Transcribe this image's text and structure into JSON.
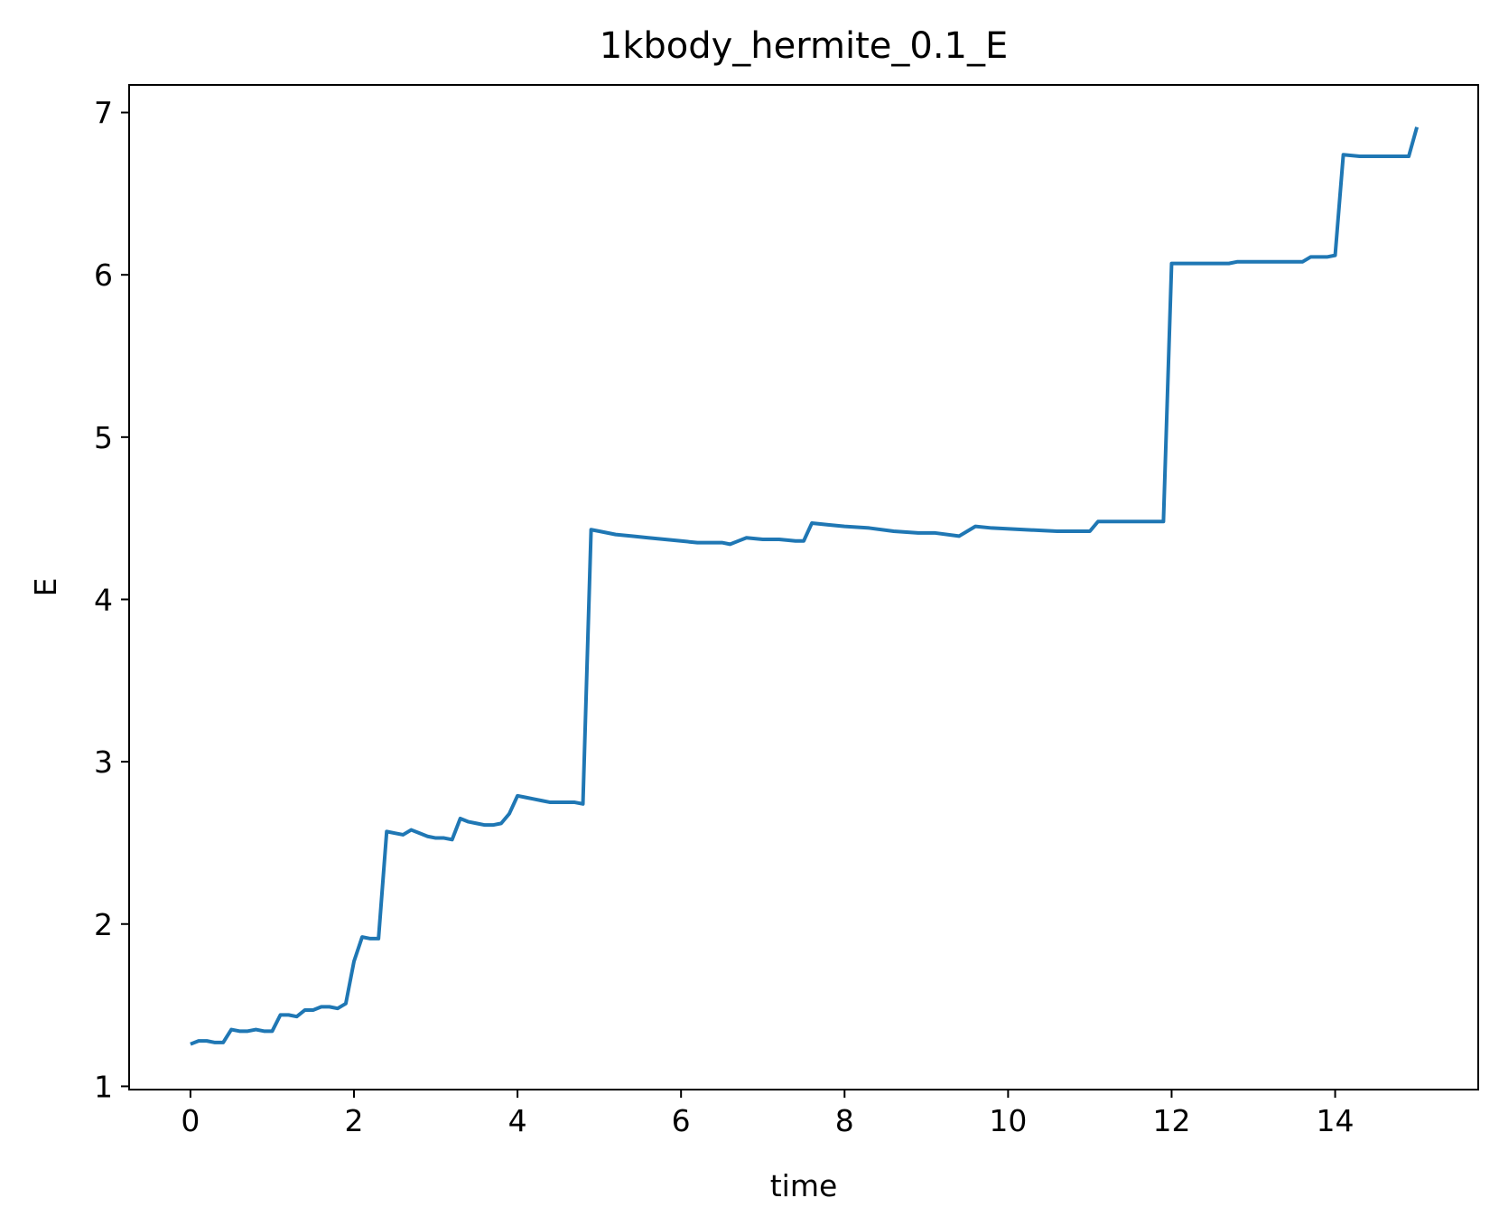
{
  "chart_data": {
    "type": "line",
    "title": "1kbody_hermite_0.1_E",
    "xlabel": "time",
    "ylabel": "E",
    "xlim": [
      -0.75,
      15.75
    ],
    "ylim": [
      0.98,
      7.17
    ],
    "xticks": [
      0,
      2,
      4,
      6,
      8,
      10,
      12,
      14
    ],
    "yticks": [
      1,
      2,
      3,
      4,
      5,
      6,
      7
    ],
    "grid": false,
    "colors": {
      "line": "#1f77b4"
    },
    "series": [
      {
        "x": [
          0.0,
          0.1,
          0.2,
          0.3,
          0.4,
          0.5,
          0.6,
          0.7,
          0.8,
          0.9,
          1.0,
          1.1,
          1.2,
          1.3,
          1.4,
          1.5,
          1.6,
          1.7,
          1.8,
          1.9,
          2.0,
          2.1,
          2.2,
          2.3,
          2.4,
          2.5,
          2.6,
          2.7,
          2.8,
          2.9,
          3.0,
          3.1,
          3.2,
          3.3,
          3.4,
          3.5,
          3.6,
          3.7,
          3.8,
          3.9,
          4.0,
          4.1,
          4.2,
          4.3,
          4.4,
          4.5,
          4.6,
          4.7,
          4.8,
          4.9,
          5.0,
          5.2,
          5.4,
          5.6,
          5.8,
          6.0,
          6.2,
          6.4,
          6.5,
          6.6,
          6.7,
          6.8,
          7.0,
          7.2,
          7.4,
          7.5,
          7.6,
          7.8,
          8.0,
          8.3,
          8.6,
          8.9,
          9.1,
          9.4,
          9.6,
          9.8,
          10.2,
          10.6,
          10.9,
          11.0,
          11.1,
          11.4,
          11.7,
          11.9,
          12.0,
          12.2,
          12.5,
          12.7,
          12.8,
          13.1,
          13.4,
          13.6,
          13.7,
          13.8,
          13.9,
          14.0,
          14.1,
          14.3,
          14.5,
          14.7,
          14.9,
          15.0
        ],
        "y": [
          1.26,
          1.28,
          1.28,
          1.27,
          1.27,
          1.35,
          1.34,
          1.34,
          1.35,
          1.34,
          1.34,
          1.44,
          1.44,
          1.43,
          1.47,
          1.47,
          1.49,
          1.49,
          1.48,
          1.51,
          1.77,
          1.92,
          1.91,
          1.91,
          2.57,
          2.56,
          2.55,
          2.58,
          2.56,
          2.54,
          2.53,
          2.53,
          2.52,
          2.65,
          2.63,
          2.62,
          2.61,
          2.61,
          2.62,
          2.68,
          2.79,
          2.78,
          2.77,
          2.76,
          2.75,
          2.75,
          2.75,
          2.75,
          2.74,
          4.43,
          4.42,
          4.4,
          4.39,
          4.38,
          4.37,
          4.36,
          4.35,
          4.35,
          4.35,
          4.34,
          4.36,
          4.38,
          4.37,
          4.37,
          4.36,
          4.36,
          4.47,
          4.46,
          4.45,
          4.44,
          4.42,
          4.41,
          4.41,
          4.39,
          4.45,
          4.44,
          4.43,
          4.42,
          4.42,
          4.42,
          4.48,
          4.48,
          4.48,
          4.48,
          6.07,
          6.07,
          6.07,
          6.07,
          6.08,
          6.08,
          6.08,
          6.08,
          6.11,
          6.11,
          6.11,
          6.12,
          6.74,
          6.73,
          6.73,
          6.73,
          6.73,
          6.91
        ]
      }
    ]
  }
}
